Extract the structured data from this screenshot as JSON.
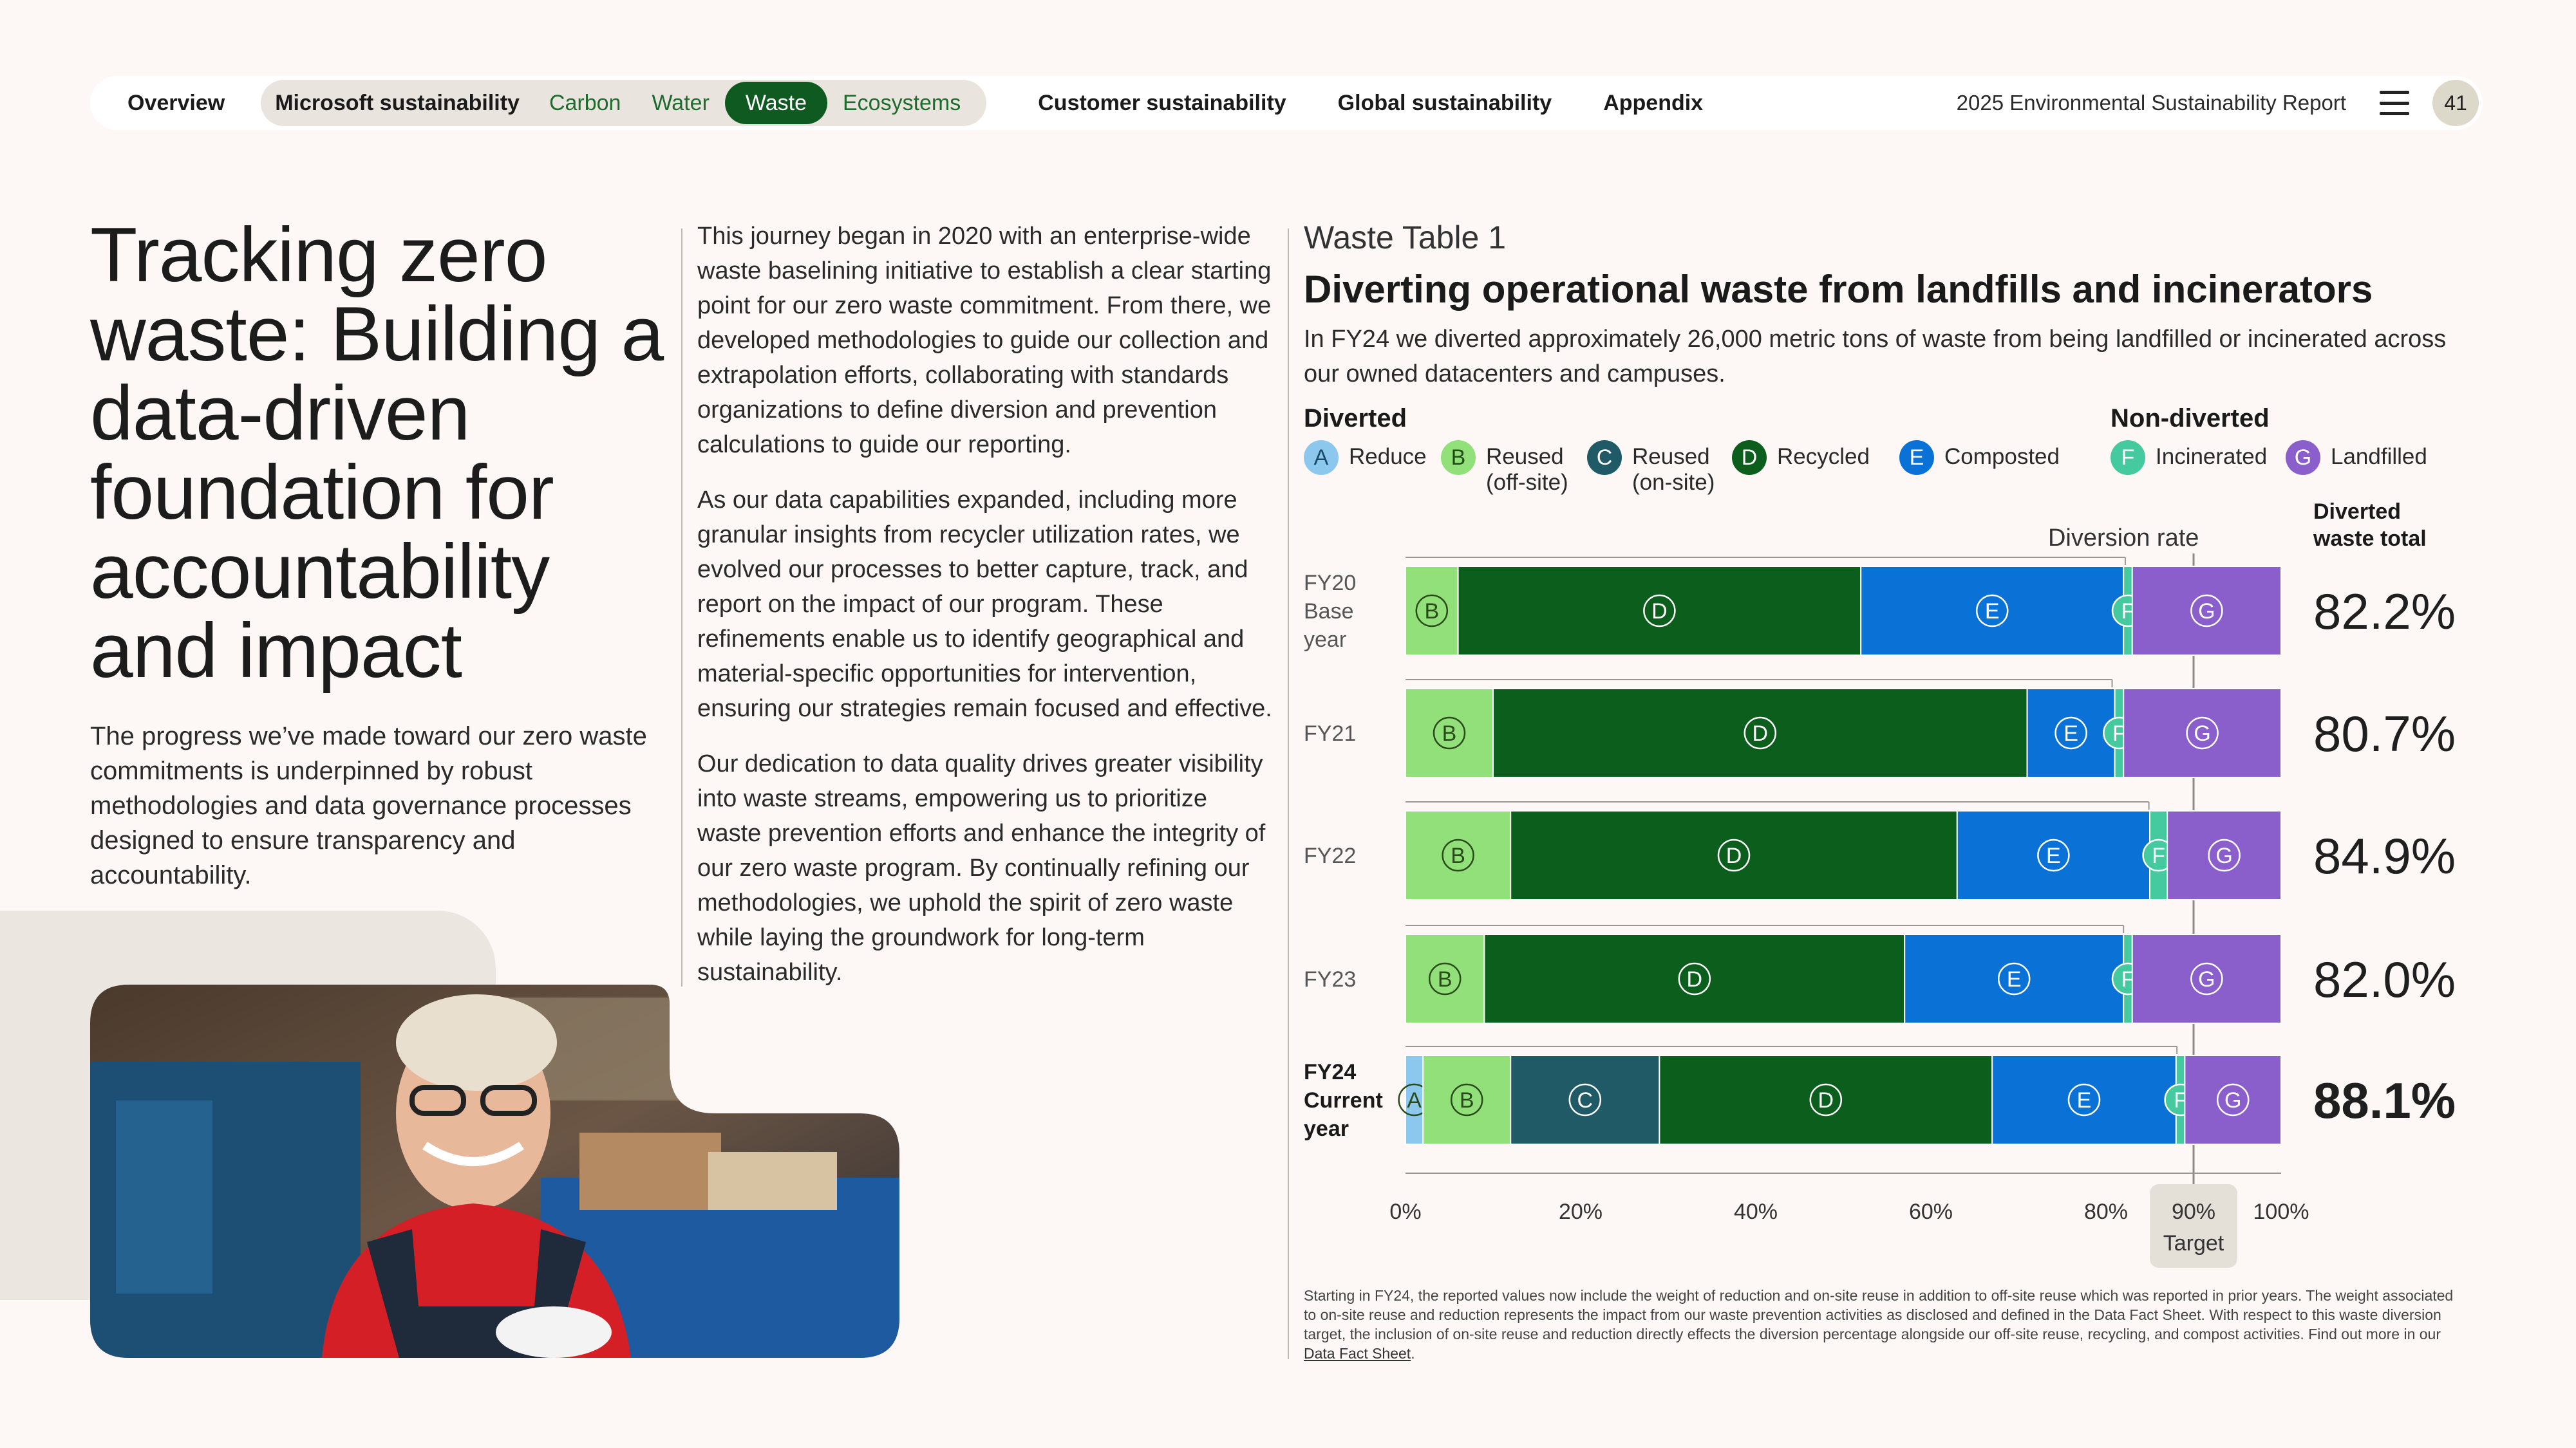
{
  "nav": {
    "overview": "Overview",
    "group_label": "Microsoft sustainability",
    "sub_items": [
      "Carbon",
      "Water",
      "Waste",
      "Ecosystems"
    ],
    "active_sub": "Waste",
    "customer": "Customer sustainability",
    "global": "Global sustainability",
    "appendix": "Appendix",
    "report_title": "2025 Environmental Sustainability Report",
    "page_number": "41"
  },
  "left": {
    "title": "Tracking zero waste: Building a data-driven foundation for accountability and impact",
    "intro": "The progress we’ve made toward our zero waste commitments is underpinned by robust methodologies and data governance processes designed to ensure transparency and accountability."
  },
  "middle": {
    "paragraphs": [
      "This journey began in 2020 with an enterprise-wide waste baselining initiative to establish a clear starting point for our zero waste commitment. From there, we developed methodologies to guide our collection and extrapolation efforts, collaborating with standards organizations to define diversion and prevention calculations to guide our reporting.",
      "As our data capabilities expanded, including more granular insights from recycler utilization rates, we evolved our processes to better capture, track, and report on the impact of our program. These refinements enable us to identify geographical and material-specific opportunities for intervention, ensuring our strategies remain focused and effective.",
      "Our dedication to data quality drives greater visibility into waste streams, empowering us to prioritize waste prevention efforts and enhance the integrity of our zero waste program. By continually refining our methodologies, we uphold the spirit of zero waste while laying the groundwork for long-term sustainability."
    ]
  },
  "chart_panel": {
    "table_label": "Waste Table 1",
    "title": "Diverting operational waste from landfills and incinerators",
    "subtitle": "In FY24 we diverted approximately 26,000 metric tons of waste from being landfilled or incinerated across our owned datacenters and campuses.",
    "legend_diverted_heading": "Diverted",
    "legend_non_diverted_heading": "Non-diverted",
    "legend": [
      {
        "key": "A",
        "label": "Reduce",
        "color": "#8cc8ee",
        "text_color": "#1a4a6a",
        "group": "diverted"
      },
      {
        "key": "B",
        "label": "Reused\n(off-site)",
        "color": "#92e07a",
        "text_color": "#1f4d12",
        "group": "diverted"
      },
      {
        "key": "C",
        "label": "Reused\n(on-site)",
        "color": "#1f5a66",
        "text_color": "#ffffff",
        "group": "diverted"
      },
      {
        "key": "D",
        "label": "Recycled",
        "color": "#0c5e1c",
        "text_color": "#ffffff",
        "group": "diverted"
      },
      {
        "key": "E",
        "label": "Composted",
        "color": "#0a72d6",
        "text_color": "#ffffff",
        "group": "diverted"
      },
      {
        "key": "F",
        "label": "Incinerated",
        "color": "#45c99f",
        "text_color": "#ffffff",
        "group": "non-diverted"
      },
      {
        "key": "G",
        "label": "Landfilled",
        "color": "#8a5fcc",
        "text_color": "#ffffff",
        "group": "non-diverted"
      }
    ],
    "footnote": "Starting in FY24, the reported values now include the weight of reduction and on-site reuse in addition to off-site reuse which was reported in prior years. The weight associated to on-site reuse and reduction represents the impact from our waste prevention activities as disclosed and defined in the Data Fact Sheet. With respect to this waste diversion target, the inclusion of on-site reuse and reduction directly effects the diversion percentage alongside our off-site reuse, recycling, and compost activities. Find out more in our ",
    "footnote_link": "Data Fact Sheet",
    "footnote_end": "."
  },
  "chart_data": {
    "type": "bar",
    "orientation": "horizontal",
    "stacked": true,
    "series_keys": [
      "A",
      "B",
      "C",
      "D",
      "E",
      "F",
      "G"
    ],
    "rows": [
      {
        "label": "FY20\nBase\nyear",
        "bold": false,
        "segments": {
          "A": 0,
          "B": 6,
          "C": 0,
          "D": 46,
          "E": 30,
          "F": 1,
          "G": 17
        },
        "diversion_rate": 82.2
      },
      {
        "label": "FY21",
        "bold": false,
        "segments": {
          "A": 0,
          "B": 10,
          "C": 0,
          "D": 61,
          "E": 10,
          "F": 1,
          "G": 18
        },
        "diversion_rate": 80.7
      },
      {
        "label": "FY22",
        "bold": false,
        "segments": {
          "A": 0,
          "B": 12,
          "C": 0,
          "D": 51,
          "E": 22,
          "F": 2,
          "G": 13
        },
        "diversion_rate": 84.9
      },
      {
        "label": "FY23",
        "bold": false,
        "segments": {
          "A": 0,
          "B": 9,
          "C": 0,
          "D": 48,
          "E": 25,
          "F": 1,
          "G": 17
        },
        "diversion_rate": 82.0
      },
      {
        "label": "FY24\nCurrent\nyear",
        "bold": true,
        "segments": {
          "A": 2,
          "B": 10,
          "C": 17,
          "D": 38,
          "E": 21,
          "F": 1,
          "G": 11
        },
        "diversion_rate": 88.1
      }
    ],
    "diversion_rate_label": "Diversion rate",
    "total_header": "Diverted\nwaste total",
    "total_labels": [
      "82.2%",
      "80.7%",
      "84.9%",
      "82.0%",
      "88.1%"
    ],
    "x_ticks": [
      "0%",
      "20%",
      "40%",
      "60%",
      "80%",
      "90%",
      "100%"
    ],
    "x_tick_values": [
      0,
      20,
      40,
      60,
      80,
      90,
      100
    ],
    "xlim": [
      0,
      100
    ],
    "target_value": 90,
    "target_label": "Target"
  }
}
